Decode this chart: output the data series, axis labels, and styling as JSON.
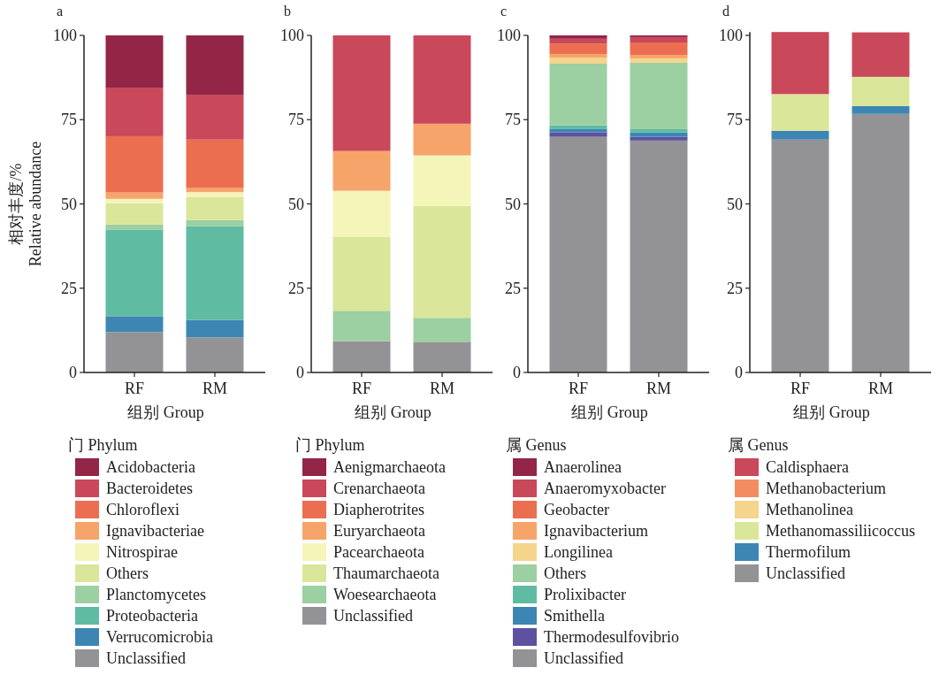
{
  "chart_data": [
    {
      "type": "bar",
      "stacked": true,
      "title": "a",
      "categories": [
        "RF",
        "RM"
      ],
      "xlabel": "组别 Group",
      "ylabel": "相对丰度/%\nRelative abundance",
      "legend_title": "门 Phylum",
      "legend": "bottom",
      "ylim": [
        0,
        100
      ],
      "yticks": [
        0,
        25,
        50,
        75,
        100
      ],
      "series": [
        {
          "name": "Unclassified",
          "color": "#939396",
          "values": [
            12.0,
            10.4
          ]
        },
        {
          "name": "Verrucomicrobia",
          "color": "#3d86b4",
          "values": [
            4.7,
            5.2
          ]
        },
        {
          "name": "Proteobacteria",
          "color": "#60bba3",
          "values": [
            25.7,
            27.8
          ]
        },
        {
          "name": "Planctomycetes",
          "color": "#9ccfa1",
          "values": [
            1.5,
            1.8
          ]
        },
        {
          "name": "Others",
          "color": "#dae69a",
          "values": [
            6.3,
            6.9
          ]
        },
        {
          "name": "Nitrospirae",
          "color": "#f5f5b9",
          "values": [
            1.3,
            1.4
          ]
        },
        {
          "name": "Ignavibacteriae",
          "color": "#f7a46b",
          "values": [
            1.9,
            1.2
          ]
        },
        {
          "name": "Chloroflexi",
          "color": "#ec6e51",
          "values": [
            16.7,
            14.4
          ]
        },
        {
          "name": "Bacteroidetes",
          "color": "#c9485a",
          "values": [
            14.4,
            13.3
          ]
        },
        {
          "name": "Acidobacteria",
          "color": "#932547",
          "values": [
            15.5,
            17.6
          ]
        }
      ]
    },
    {
      "type": "bar",
      "stacked": true,
      "title": "b",
      "categories": [
        "RF",
        "RM"
      ],
      "xlabel": "组别 Group",
      "legend_title": "门 Phylum",
      "legend": "bottom",
      "ylim": [
        0,
        100
      ],
      "yticks": [
        0,
        25,
        50,
        75,
        100
      ],
      "series": [
        {
          "name": "Unclassified",
          "color": "#939396",
          "values": [
            9.3,
            9.1
          ]
        },
        {
          "name": "Woesearchaeota",
          "color": "#9ccfa1",
          "values": [
            9.0,
            7.1
          ]
        },
        {
          "name": "Thaumarchaeota",
          "color": "#dae69a",
          "values": [
            22.0,
            33.2
          ]
        },
        {
          "name": "Pacearchaeota",
          "color": "#f5f5b9",
          "values": [
            13.6,
            15.0
          ]
        },
        {
          "name": "Euryarchaeota",
          "color": "#f7a46b",
          "values": [
            11.8,
            9.4
          ]
        },
        {
          "name": "Diapherotrites",
          "color": "#ec6e51",
          "values": [
            0,
            0
          ]
        },
        {
          "name": "Crenarchaeota",
          "color": "#c9485a",
          "values": [
            34.3,
            26.2
          ]
        },
        {
          "name": "Aenigmarchaeota",
          "color": "#932547",
          "values": [
            0,
            0
          ]
        }
      ]
    },
    {
      "type": "bar",
      "stacked": true,
      "title": "c",
      "categories": [
        "RF",
        "RM"
      ],
      "xlabel": "组别 Group",
      "legend_title": "属 Genus",
      "legend": "bottom",
      "ylim": [
        0,
        100
      ],
      "yticks": [
        0,
        25,
        50,
        75,
        100
      ],
      "series": [
        {
          "name": "Unclassified",
          "color": "#939396",
          "values": [
            69.9,
            68.8
          ]
        },
        {
          "name": "Thermodesulfovibrio",
          "color": "#5e52a0",
          "values": [
            1.3,
            1.1
          ]
        },
        {
          "name": "Smithella",
          "color": "#3d86b4",
          "values": [
            1.0,
            1.3
          ]
        },
        {
          "name": "Prolixibacter",
          "color": "#60bba3",
          "values": [
            1.1,
            1.0
          ]
        },
        {
          "name": "Others",
          "color": "#9ccfa1",
          "values": [
            18.3,
            19.7
          ]
        },
        {
          "name": "Longilinea",
          "color": "#f5d48c",
          "values": [
            1.8,
            1.3
          ]
        },
        {
          "name": "Ignavibacterium",
          "color": "#f7a46b",
          "values": [
            1.1,
            1.0
          ]
        },
        {
          "name": "Geobacter",
          "color": "#ec6e51",
          "values": [
            3.1,
            3.7
          ]
        },
        {
          "name": "Anaeromyxobacter",
          "color": "#c9485a",
          "values": [
            1.4,
            1.6
          ]
        },
        {
          "name": "Anaerolinea",
          "color": "#932547",
          "values": [
            1.0,
            0.5
          ]
        }
      ]
    },
    {
      "type": "bar",
      "stacked": true,
      "title": "d",
      "categories": [
        "RF",
        "RM"
      ],
      "xlabel": "组别 Group",
      "legend_title": "属 Genus",
      "legend": "bottom",
      "ylim": [
        0,
        101
      ],
      "yticks": [
        0,
        25,
        50,
        75,
        100
      ],
      "series": [
        {
          "name": "Unclassified",
          "color": "#939396",
          "values": [
            69.1,
            76.7
          ]
        },
        {
          "name": "Thermofilum",
          "color": "#3d86b4",
          "values": [
            2.6,
            2.3
          ]
        },
        {
          "name": "Methanomassiliicoccus",
          "color": "#dae69a",
          "values": [
            10.7,
            8.7
          ]
        },
        {
          "name": "Methanolinea",
          "color": "#f5d48c",
          "values": [
            0.2,
            0
          ]
        },
        {
          "name": "Methanobacterium",
          "color": "#f48c62",
          "values": [
            0,
            0
          ]
        },
        {
          "name": "Caldisphaera",
          "color": "#c9485a",
          "values": [
            18.4,
            13.2
          ]
        }
      ]
    }
  ]
}
